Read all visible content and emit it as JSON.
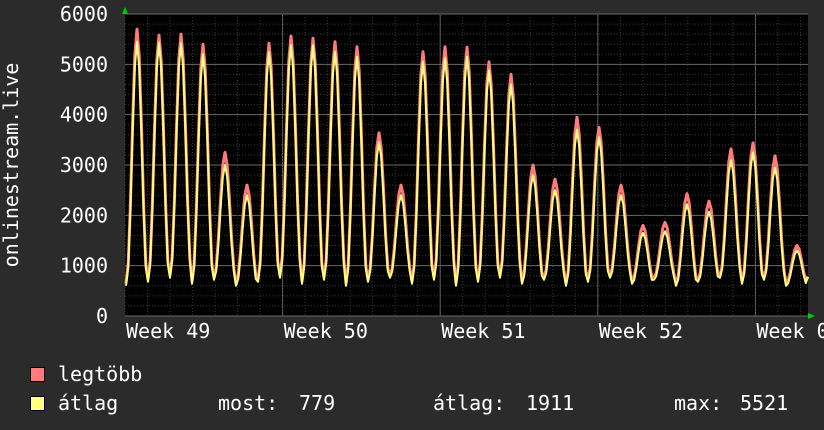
{
  "chart_data": {
    "type": "area",
    "ylabel": "onlinestream.live",
    "ylim": [
      0,
      6000
    ],
    "y_ticks": [
      "0",
      "1000",
      "2000",
      "3000",
      "4000",
      "5000",
      "6000"
    ],
    "x_ticks": [
      "Week 49",
      "Week 50",
      "Week 51",
      "Week 52",
      "Week 0"
    ],
    "grid": true,
    "series": [
      {
        "name": "legtöbb",
        "color": "#ff7b7b",
        "values": [
          5700,
          5580,
          5600,
          5400,
          3250,
          2600,
          5420,
          5560,
          5520,
          5450,
          5350,
          3640,
          2600,
          5250,
          5350,
          5340,
          5050,
          4800,
          3000,
          2720,
          3950,
          3750,
          2600,
          1800,
          1860,
          2430,
          2280,
          3320,
          3440,
          3180,
          1400
        ]
      },
      {
        "name": "átlag",
        "color": "#ffff80",
        "values": [
          5450,
          5430,
          5420,
          5200,
          3000,
          2400,
          5240,
          5380,
          5380,
          5250,
          5150,
          3450,
          2400,
          5050,
          5120,
          5150,
          4880,
          4600,
          2800,
          2500,
          3700,
          3550,
          2400,
          1650,
          1680,
          2220,
          2070,
          3100,
          3250,
          2950,
          1300
        ]
      }
    ],
    "summary": {
      "most_label": "most:",
      "most_value": "779",
      "atlag_label": "átlag:",
      "atlag_value": "1911",
      "max_label": "max:",
      "max_value": "5521"
    },
    "legend_position": "bottom-left"
  },
  "colors": {
    "background": "#2b2b2b",
    "plot_bg": "#000000",
    "grid": "#555555",
    "axis_marker": "#00cc00"
  }
}
